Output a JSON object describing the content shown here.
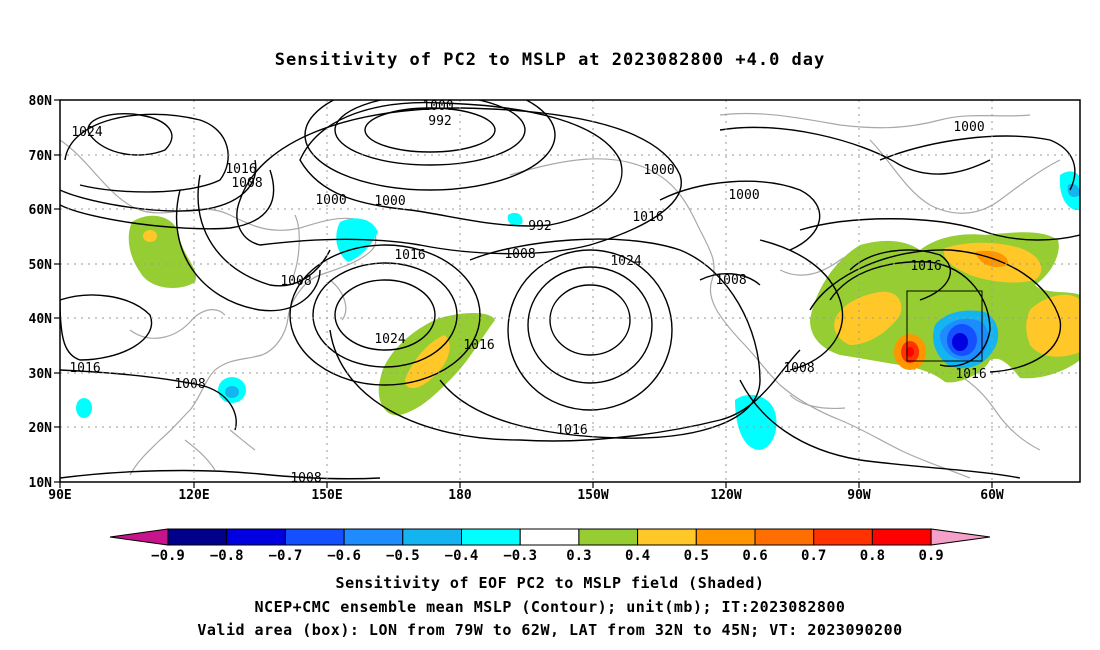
{
  "title": "Sensitivity of PC2 to MSLP at 2023082800 +4.0 day",
  "lat_labels": [
    "80N",
    "70N",
    "60N",
    "50N",
    "40N",
    "30N",
    "20N",
    "10N"
  ],
  "lon_labels": [
    "90E",
    "120E",
    "150E",
    "180",
    "150W",
    "120W",
    "90W",
    "60W"
  ],
  "contour_labels": [
    {
      "text": "1000"
    },
    {
      "text": "992"
    },
    {
      "text": "1024"
    },
    {
      "text": "1016"
    },
    {
      "text": "1008"
    },
    {
      "text": "1000"
    },
    {
      "text": "1000"
    },
    {
      "text": "1000"
    },
    {
      "text": "992"
    },
    {
      "text": "1016"
    },
    {
      "text": "1008"
    },
    {
      "text": "1024"
    },
    {
      "text": "1008"
    },
    {
      "text": "1024"
    },
    {
      "text": "1016"
    },
    {
      "text": "1016"
    },
    {
      "text": "1016"
    },
    {
      "text": "1008"
    },
    {
      "text": "1016"
    },
    {
      "text": "1008"
    },
    {
      "text": "1008"
    },
    {
      "text": "1016"
    },
    {
      "text": "1000"
    },
    {
      "text": "1000"
    },
    {
      "text": "1008"
    }
  ],
  "colorbar": {
    "labels": [
      "-0.9",
      "-0.8",
      "-0.7",
      "-0.6",
      "-0.5",
      "-0.4",
      "-0.3",
      "0.3",
      "0.4",
      "0.5",
      "0.6",
      "0.7",
      "0.8",
      "0.9"
    ],
    "colors": [
      "#00008b",
      "#0000e0",
      "#1450ff",
      "#1e8cff",
      "#14b4f0",
      "#00ffff",
      "#ffffff",
      "#96cd32",
      "#ffc828",
      "#ff9600",
      "#ff6e00",
      "#ff3200",
      "#ff0000"
    ],
    "end_low_color": "#c8148c",
    "end_high_color": "#f5a0c8"
  },
  "captions": {
    "line1": "Sensitivity of EOF PC2 to MSLP field (Shaded)",
    "line2": "NCEP+CMC ensemble mean MSLP (Contour); unit(mb); IT:2023082800",
    "line3": "Valid area (box): LON from 79W to 62W, LAT from 32N to 45N; VT: 2023090200"
  }
}
